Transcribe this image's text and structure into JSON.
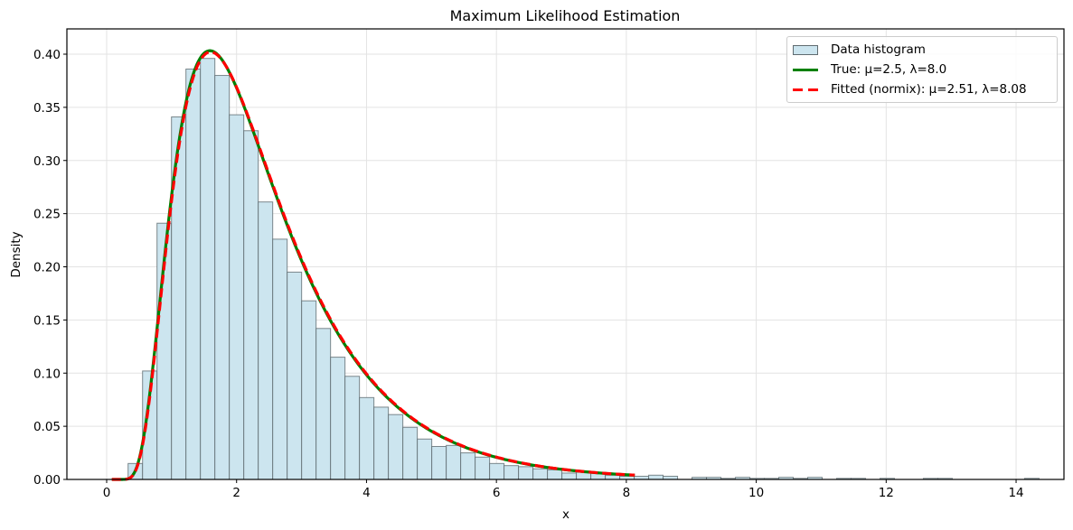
{
  "chart_data": {
    "type": "bar",
    "title": "Maximum Likelihood Estimation",
    "xlabel": "x",
    "ylabel": "Density",
    "xlim": [
      -0.6,
      15.3
    ],
    "ylim": [
      0,
      0.423
    ],
    "xticks": [
      0,
      2,
      4,
      6,
      8,
      10,
      12,
      14
    ],
    "xtick_labels": [
      "0",
      "2",
      "4",
      "6",
      "8",
      "10",
      "12",
      "14"
    ],
    "yticks": [
      0.0,
      0.05,
      0.1,
      0.15,
      0.2,
      0.25,
      0.3,
      0.35,
      0.4
    ],
    "ytick_labels": [
      "0.00",
      "0.05",
      "0.10",
      "0.15",
      "0.20",
      "0.25",
      "0.30",
      "0.35",
      "0.40"
    ],
    "grid": true,
    "legend_position": "upper right",
    "histogram": {
      "name": "Data histogram",
      "bin_start": 0.33,
      "bin_width": 0.2226,
      "fill_color": "#cce5ef",
      "edge_color": "#5f6b70",
      "values": [
        0.015,
        0.102,
        0.241,
        0.341,
        0.386,
        0.396,
        0.38,
        0.343,
        0.328,
        0.261,
        0.226,
        0.195,
        0.168,
        0.142,
        0.115,
        0.097,
        0.077,
        0.068,
        0.061,
        0.049,
        0.038,
        0.031,
        0.032,
        0.025,
        0.021,
        0.015,
        0.013,
        0.012,
        0.01,
        0.009,
        0.006,
        0.007,
        0.006,
        0.004,
        0.003,
        0.003,
        0.004,
        0.003,
        0.0,
        0.002,
        0.002,
        0.001,
        0.002,
        0.001,
        0.001,
        0.002,
        0.001,
        0.002,
        0.0,
        0.001,
        0.001,
        0.0,
        0.001,
        0.0,
        0.0,
        0.001,
        0.001,
        0.0,
        0.0,
        0.0,
        0.0,
        0.0,
        0.001
      ]
    },
    "series": [
      {
        "name": "True: μ=2.5, λ=8.0",
        "type": "line",
        "distribution": "inverse_gaussian",
        "mu": 2.5,
        "lambda": 8.0,
        "x_range": [
          0.08,
          8.13
        ],
        "color": "#008000",
        "style": "solid",
        "peak": {
          "x": 1.6,
          "y": 0.404
        }
      },
      {
        "name": "Fitted (normix): μ=2.51, λ=8.08",
        "type": "line",
        "distribution": "inverse_gaussian",
        "mu": 2.51,
        "lambda": 8.08,
        "x_range": [
          0.08,
          8.13
        ],
        "color": "#ff0000",
        "style": "dashed",
        "peak": {
          "x": 1.6,
          "y": 0.405
        }
      }
    ]
  },
  "legend": {
    "items": [
      {
        "label": "Data histogram",
        "kind": "patch"
      },
      {
        "label": "True: μ=2.5, λ=8.0",
        "kind": "solid"
      },
      {
        "label": "Fitted (normix): μ=2.51, λ=8.08",
        "kind": "dash"
      }
    ]
  }
}
